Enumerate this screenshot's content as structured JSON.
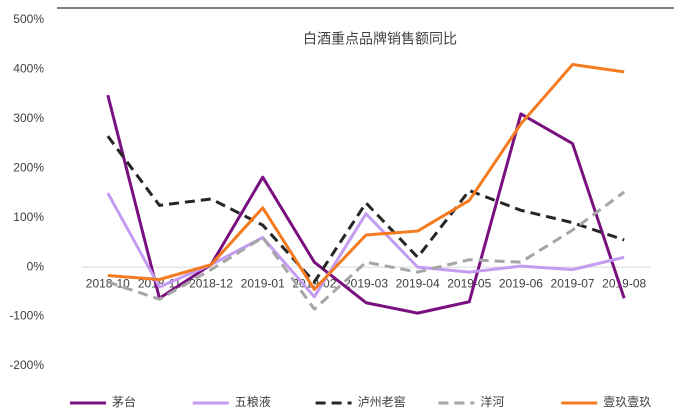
{
  "chart_data": {
    "type": "line",
    "title": "白酒重点品牌销售额同比",
    "categories": [
      "2018-10",
      "2018-11",
      "2018-12",
      "2019-01",
      "2019-02",
      "2019-03",
      "2019-04",
      "2019-05",
      "2019-06",
      "2019-07",
      "2019-08"
    ],
    "series": [
      {
        "name": "茅台",
        "color": "#7a1080",
        "style": "solid",
        "values": [
          348,
          -63,
          5,
          182,
          10,
          -72,
          -93,
          -70,
          310,
          250,
          -63
        ]
      },
      {
        "name": "五粮液",
        "color": "#c49cf2",
        "style": "solid",
        "values": [
          150,
          -40,
          5,
          60,
          -60,
          108,
          0,
          -10,
          2,
          -5,
          20
        ]
      },
      {
        "name": "泸州老窖",
        "color": "#262626",
        "style": "dashed",
        "values": [
          265,
          125,
          138,
          85,
          -30,
          130,
          20,
          155,
          115,
          90,
          55
        ]
      },
      {
        "name": "洋河",
        "color": "#a6a6a6",
        "style": "dashed",
        "values": [
          -30,
          -65,
          -5,
          60,
          -85,
          10,
          -10,
          15,
          10,
          75,
          152
        ]
      },
      {
        "name": "壹玖壹玖",
        "color": "#f47b20",
        "style": "solid",
        "values": [
          -17,
          -25,
          5,
          120,
          -45,
          65,
          73,
          135,
          290,
          410,
          395
        ]
      }
    ],
    "ylim": [
      -200,
      500
    ],
    "yticks": [
      {
        "value": -200,
        "label": "-200%"
      },
      {
        "value": -100,
        "label": "-100%"
      },
      {
        "value": 0,
        "label": "0%"
      },
      {
        "value": 100,
        "label": "100%"
      },
      {
        "value": 200,
        "label": "200%"
      },
      {
        "value": 300,
        "label": "300%"
      },
      {
        "value": 400,
        "label": "400%"
      },
      {
        "value": 500,
        "label": "500%"
      }
    ],
    "grid": false
  }
}
